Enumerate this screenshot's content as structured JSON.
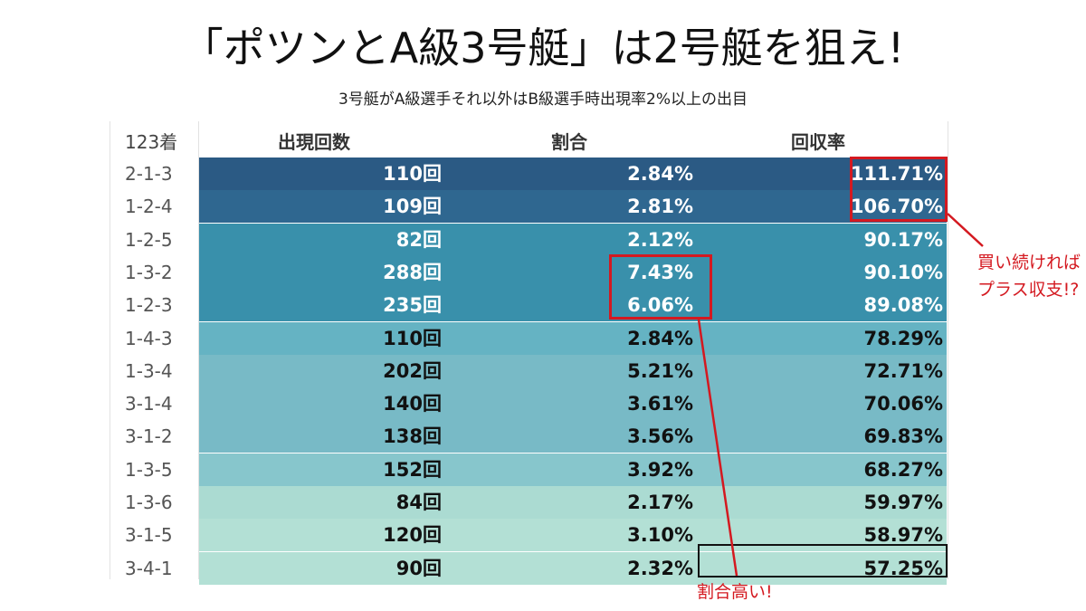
{
  "title": "「ポツンとA級3号艇」は2号艇を狙え!",
  "subtitle": "3号艇がA級選手それ以外はB級選手時出現率2%以上の出目",
  "chart_data": {
    "type": "table",
    "columns": [
      "123着",
      "出現回数",
      "割合",
      "回収率"
    ],
    "rows": [
      {
        "combo": "2-1-3",
        "count": "110回",
        "share": "2.84%",
        "return": "111.71%"
      },
      {
        "combo": "1-2-4",
        "count": "109回",
        "share": "2.81%",
        "return": "106.70%"
      },
      {
        "combo": "1-2-5",
        "count": "82回",
        "share": "2.12%",
        "return": "90.17%"
      },
      {
        "combo": "1-3-2",
        "count": "288回",
        "share": "7.43%",
        "return": "90.10%"
      },
      {
        "combo": "1-2-3",
        "count": "235回",
        "share": "6.06%",
        "return": "89.08%"
      },
      {
        "combo": "1-4-3",
        "count": "110回",
        "share": "2.84%",
        "return": "78.29%"
      },
      {
        "combo": "1-3-4",
        "count": "202回",
        "share": "5.21%",
        "return": "72.71%"
      },
      {
        "combo": "3-1-4",
        "count": "140回",
        "share": "3.61%",
        "return": "70.06%"
      },
      {
        "combo": "3-1-2",
        "count": "138回",
        "share": "3.56%",
        "return": "69.83%"
      },
      {
        "combo": "1-3-5",
        "count": "152回",
        "share": "3.92%",
        "return": "68.27%"
      },
      {
        "combo": "1-3-6",
        "count": "84回",
        "share": "2.17%",
        "return": "59.97%"
      },
      {
        "combo": "3-1-5",
        "count": "120回",
        "share": "3.10%",
        "return": "58.97%"
      },
      {
        "combo": "3-4-1",
        "count": "90回",
        "share": "2.32%",
        "return": "57.25%"
      }
    ],
    "row_colors": [
      "#2b5a84",
      "#2f6790",
      "#3990ab",
      "#3990ab",
      "#3990ab",
      "#65b3c3",
      "#78bac6",
      "#78bac6",
      "#78bac6",
      "#87c6cc",
      "#abdbd2",
      "#b3e0d5",
      "#b3e0d5"
    ],
    "row_text_colors": [
      "#ffffff",
      "#ffffff",
      "#ffffff",
      "#ffffff",
      "#ffffff",
      "#111111",
      "#111111",
      "#111111",
      "#111111",
      "#111111",
      "#111111",
      "#111111",
      "#111111"
    ]
  },
  "annotations": {
    "return_note_line1": "買い続ければ",
    "return_note_line2": "プラス収支!?",
    "share_note": "割合高い!",
    "accent_color": "#d41920"
  }
}
